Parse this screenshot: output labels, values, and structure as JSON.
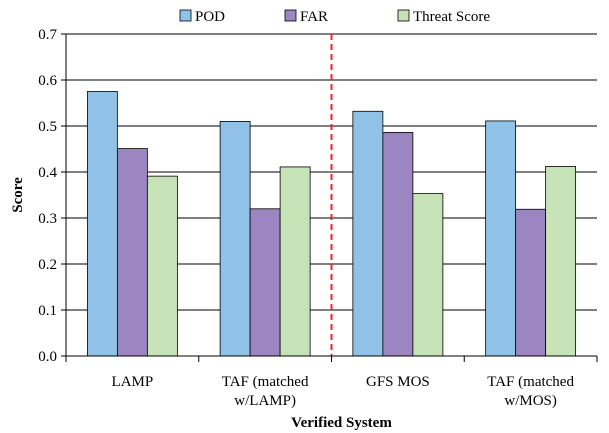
{
  "chart_data": {
    "type": "bar",
    "title": "",
    "xlabel": "Verified System",
    "ylabel": "Score",
    "ylim": [
      0,
      0.7
    ],
    "yticks": [
      "0.0",
      "0.1",
      "0.2",
      "0.3",
      "0.4",
      "0.5",
      "0.6",
      "0.7"
    ],
    "grid": true,
    "legend_position": "top",
    "categories": [
      [
        "LAMP"
      ],
      [
        "TAF (matched",
        "w/LAMP)"
      ],
      [
        "GFS MOS"
      ],
      [
        "TAF (matched",
        "w/MOS)"
      ]
    ],
    "series": [
      {
        "name": "POD",
        "color": "#8fc2e6",
        "values": [
          0.575,
          0.51,
          0.532,
          0.511
        ]
      },
      {
        "name": "FAR",
        "color": "#9b86c1",
        "values": [
          0.451,
          0.32,
          0.486,
          0.319
        ]
      },
      {
        "name": "Threat Score",
        "color": "#c6e3b7",
        "values": [
          0.391,
          0.411,
          0.353,
          0.412
        ]
      }
    ],
    "divider_after_category": 1,
    "divider_color": "#e8262b"
  }
}
